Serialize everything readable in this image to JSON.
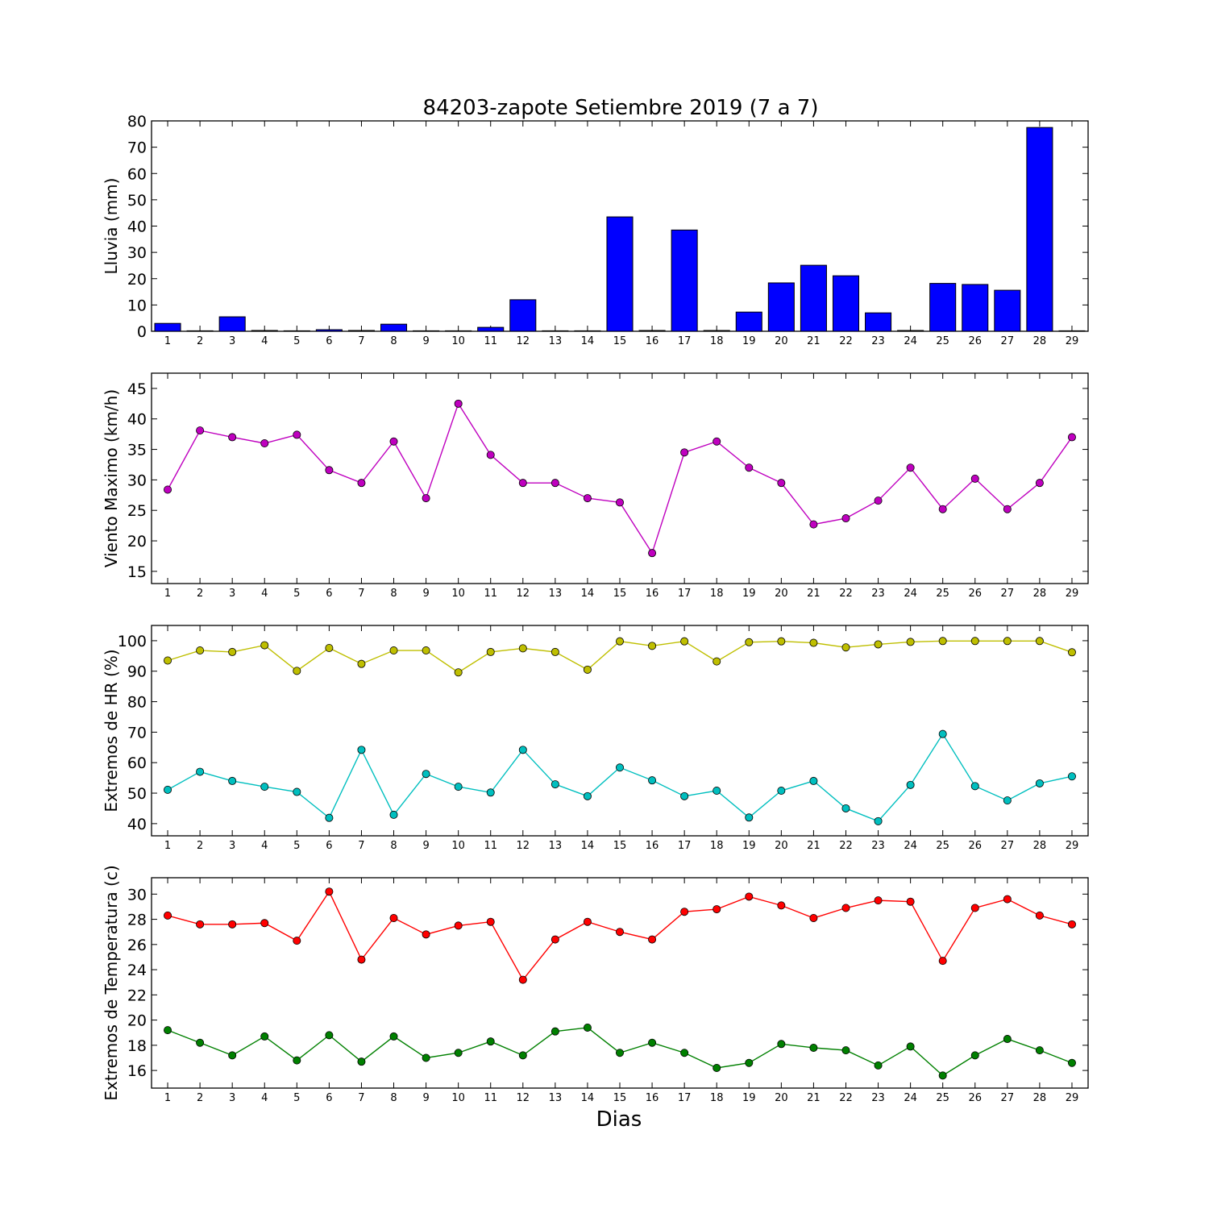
{
  "title": "84203-zapote Setiembre 2019  (7 a 7)",
  "xlabel": "Dias",
  "chart_data": [
    {
      "type": "bar",
      "ylabel": "Lluvia (mm)",
      "ylim": [
        0,
        80
      ],
      "yticks": [
        0,
        10,
        20,
        30,
        40,
        50,
        60,
        70,
        80
      ],
      "xlim": [
        0.5,
        29.5
      ],
      "categories": [
        1,
        2,
        3,
        4,
        5,
        6,
        7,
        8,
        9,
        10,
        11,
        12,
        13,
        14,
        15,
        16,
        17,
        18,
        19,
        20,
        21,
        22,
        23,
        24,
        25,
        26,
        27,
        28,
        29
      ],
      "series": [
        {
          "color": "#0000ff",
          "values": [
            3.0,
            0.0,
            5.5,
            0.3,
            0.0,
            0.6,
            0.3,
            2.7,
            0.0,
            0.0,
            1.5,
            12.0,
            0.0,
            0.0,
            43.5,
            0.3,
            38.5,
            0.3,
            7.3,
            18.4,
            25.1,
            21.1,
            7.0,
            0.3,
            18.2,
            17.8,
            15.6,
            77.5,
            0.0
          ]
        }
      ]
    },
    {
      "type": "line",
      "ylabel": "Viento Maximo (km/h)",
      "ylim": [
        13,
        47.5
      ],
      "yticks": [
        15,
        20,
        25,
        30,
        35,
        40,
        45
      ],
      "xlim": [
        0.5,
        29.5
      ],
      "x": [
        1,
        2,
        3,
        4,
        5,
        6,
        7,
        8,
        9,
        10,
        11,
        12,
        13,
        14,
        15,
        16,
        17,
        18,
        19,
        20,
        21,
        22,
        23,
        24,
        25,
        26,
        27,
        28,
        29
      ],
      "series": [
        {
          "color": "#bf00bf",
          "values": [
            28.4,
            38.1,
            37.0,
            36.0,
            37.4,
            31.6,
            29.5,
            36.3,
            27.0,
            42.5,
            34.1,
            29.5,
            29.5,
            27.0,
            26.3,
            18.0,
            34.5,
            36.3,
            32.0,
            29.5,
            22.7,
            23.7,
            26.6,
            32.0,
            25.2,
            30.2,
            25.2,
            29.5,
            37.0
          ]
        }
      ]
    },
    {
      "type": "line",
      "ylabel": "Extremos de HR (%)",
      "ylim": [
        36,
        105
      ],
      "yticks": [
        40,
        50,
        60,
        70,
        80,
        90,
        100
      ],
      "xlim": [
        0.5,
        29.5
      ],
      "x": [
        1,
        2,
        3,
        4,
        5,
        6,
        7,
        8,
        9,
        10,
        11,
        12,
        13,
        14,
        15,
        16,
        17,
        18,
        19,
        20,
        21,
        22,
        23,
        24,
        25,
        26,
        27,
        28,
        29
      ],
      "series": [
        {
          "color": "#bfbf00",
          "values": [
            93.5,
            96.8,
            96.3,
            98.5,
            90.1,
            97.6,
            92.4,
            96.8,
            96.8,
            89.6,
            96.3,
            97.5,
            96.3,
            90.5,
            99.8,
            98.3,
            99.8,
            93.2,
            99.5,
            99.8,
            99.3,
            97.8,
            98.8,
            99.6,
            99.9,
            99.9,
            99.9,
            99.9,
            96.2
          ]
        },
        {
          "color": "#00bfbf",
          "values": [
            51.1,
            57.0,
            54.0,
            52.1,
            50.4,
            41.9,
            64.2,
            42.9,
            56.3,
            52.1,
            50.2,
            64.2,
            52.9,
            49.0,
            58.4,
            54.2,
            49.0,
            50.8,
            42.0,
            50.8,
            54.0,
            45.0,
            40.8,
            52.7,
            69.4,
            52.3,
            47.6,
            53.2,
            55.5
          ]
        }
      ]
    },
    {
      "type": "line",
      "ylabel": "Extremos de Temperatura (c)",
      "ylim": [
        14.6,
        31.3
      ],
      "yticks": [
        16,
        18,
        20,
        22,
        24,
        26,
        28,
        30
      ],
      "xlim": [
        0.5,
        29.5
      ],
      "x": [
        1,
        2,
        3,
        4,
        5,
        6,
        7,
        8,
        9,
        10,
        11,
        12,
        13,
        14,
        15,
        16,
        17,
        18,
        19,
        20,
        21,
        22,
        23,
        24,
        25,
        26,
        27,
        28,
        29
      ],
      "series": [
        {
          "color": "#ff0000",
          "values": [
            28.3,
            27.6,
            27.6,
            27.7,
            26.3,
            30.2,
            24.8,
            28.1,
            26.8,
            27.5,
            27.8,
            23.2,
            26.4,
            27.8,
            27.0,
            26.4,
            28.6,
            28.8,
            29.8,
            29.1,
            28.1,
            28.9,
            29.5,
            29.4,
            24.7,
            28.9,
            29.6,
            28.3,
            27.6
          ]
        },
        {
          "color": "#008000",
          "values": [
            19.2,
            18.2,
            17.2,
            18.7,
            16.8,
            18.8,
            16.7,
            18.7,
            17.0,
            17.4,
            18.3,
            17.2,
            19.1,
            19.4,
            17.4,
            18.2,
            17.4,
            16.2,
            16.6,
            18.1,
            17.8,
            17.6,
            16.4,
            17.9,
            15.6,
            17.2,
            18.5,
            17.6,
            16.6
          ]
        }
      ]
    }
  ]
}
